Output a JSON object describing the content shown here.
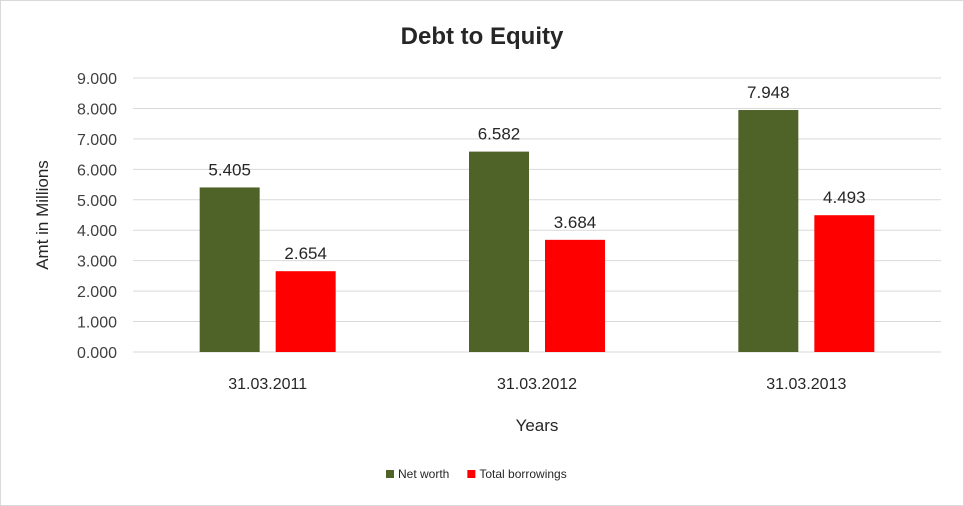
{
  "chart_data": {
    "type": "bar",
    "title": "Debt to Equity",
    "xlabel": "Years",
    "ylabel": "Amt in Millions",
    "categories": [
      "31.03.2011",
      "31.03.2012",
      "31.03.2013"
    ],
    "series": [
      {
        "name": "Net worth",
        "color": "#4f6228",
        "values": [
          5.405,
          6.582,
          7.948
        ],
        "labels": [
          "5.405",
          "6.582",
          "7.948"
        ]
      },
      {
        "name": "Total borrowings",
        "color": "#ff0000",
        "values": [
          2.654,
          3.684,
          4.493
        ],
        "labels": [
          "2.654",
          "3.684",
          "4.493"
        ]
      }
    ],
    "ylim": [
      0,
      9
    ],
    "yticks": [
      "0.000",
      "1.000",
      "2.000",
      "3.000",
      "4.000",
      "5.000",
      "6.000",
      "7.000",
      "8.000",
      "9.000"
    ],
    "grid": true,
    "legend_position": "bottom",
    "gridline_color": "#d9d9d9"
  }
}
